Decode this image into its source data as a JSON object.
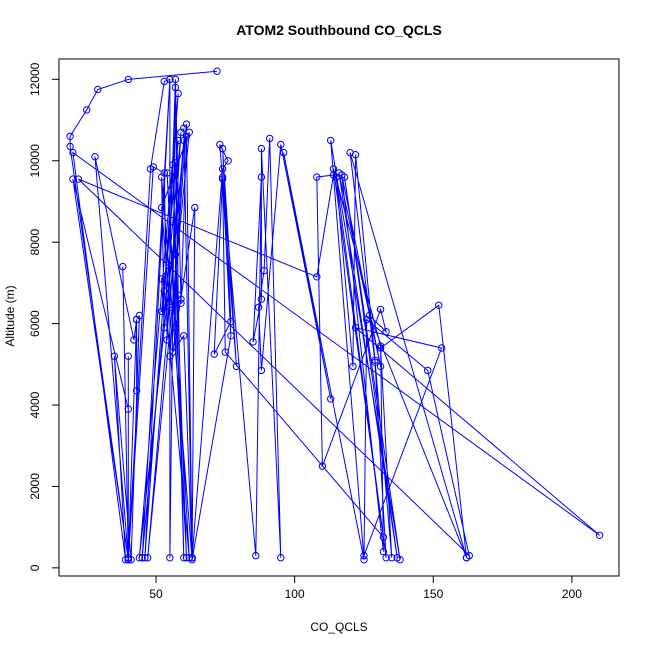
{
  "chart_data": {
    "type": "line",
    "title": "ATOM2 Southbound CO_QCLS",
    "xlabel": "CO_QCLS",
    "ylabel": "Altitude (m)",
    "xlim": [
      15,
      217
    ],
    "ylim": [
      -200,
      12500
    ],
    "xticks": [
      50,
      100,
      150,
      200
    ],
    "yticks": [
      0,
      2000,
      4000,
      6000,
      8000,
      10000,
      12000
    ],
    "grid": false,
    "series_color": "#0000ff",
    "series": [
      {
        "points": [
          [
            72,
            12200
          ],
          [
            40,
            12000
          ],
          [
            29,
            11750
          ],
          [
            25,
            11250
          ],
          [
            19,
            10600
          ],
          [
            19,
            10350
          ],
          [
            40,
            200
          ],
          [
            38,
            7400
          ],
          [
            40,
            250
          ],
          [
            40,
            5200
          ],
          [
            40,
            3900
          ],
          [
            20,
            9550
          ],
          [
            40,
            200
          ],
          [
            43,
            6100
          ],
          [
            42,
            5600
          ],
          [
            28,
            10100
          ],
          [
            40,
            250
          ],
          [
            48,
            9800
          ],
          [
            53,
            11950
          ],
          [
            55,
            12000
          ],
          [
            45,
            250
          ],
          [
            59,
            10700
          ],
          [
            55,
            6400
          ],
          [
            52,
            8850
          ],
          [
            62,
            10700
          ],
          [
            47,
            250
          ],
          [
            60,
            10500
          ],
          [
            55,
            5200
          ],
          [
            61,
            10900
          ],
          [
            44,
            250
          ],
          [
            58,
            11650
          ],
          [
            46,
            250
          ],
          [
            55,
            12000
          ],
          [
            55,
            250
          ],
          [
            57,
            11800
          ],
          [
            58,
            6700
          ],
          [
            57,
            9950
          ],
          [
            60,
            250
          ],
          [
            56,
            9900
          ],
          [
            61,
            250
          ],
          [
            54,
            9700
          ],
          [
            62,
            250
          ],
          [
            53,
            6800
          ],
          [
            58,
            10500
          ],
          [
            52,
            6300
          ],
          [
            59,
            6500
          ],
          [
            61,
            10600
          ],
          [
            63,
            250
          ],
          [
            60,
            10800
          ],
          [
            63,
            250
          ],
          [
            64,
            8850
          ],
          [
            56,
            5300
          ],
          [
            60,
            5700
          ],
          [
            63,
            250
          ],
          [
            74,
            9800
          ],
          [
            76,
            10000
          ],
          [
            73,
            10400
          ],
          [
            79,
            4950
          ],
          [
            74,
            10300
          ],
          [
            77,
            6050
          ],
          [
            71,
            5250
          ],
          [
            74,
            9600
          ],
          [
            86,
            300
          ],
          [
            88,
            9600
          ],
          [
            85,
            5550
          ],
          [
            88,
            6600
          ],
          [
            88,
            10300
          ],
          [
            95,
            250
          ],
          [
            91,
            10550
          ],
          [
            89,
            7300
          ],
          [
            87,
            6400
          ],
          [
            88,
            4850
          ],
          [
            95,
            10400
          ],
          [
            113,
            4150
          ],
          [
            96,
            10200
          ],
          [
            125,
            200
          ],
          [
            113,
            10500
          ],
          [
            138,
            200
          ],
          [
            118,
            9600
          ],
          [
            137,
            250
          ],
          [
            116,
            9700
          ],
          [
            131,
            4950
          ],
          [
            117,
            9650
          ],
          [
            132,
            400
          ],
          [
            131,
            5450
          ],
          [
            114,
            9800
          ],
          [
            133,
            250
          ],
          [
            129,
            5050
          ],
          [
            120,
            10200
          ],
          [
            162,
            250
          ],
          [
            127,
            6200
          ],
          [
            133,
            5800
          ],
          [
            131,
            6350
          ],
          [
            110,
            2500
          ],
          [
            108,
            9600
          ],
          [
            114,
            9650
          ],
          [
            108,
            7150
          ],
          [
            22,
            9550
          ],
          [
            163,
            300
          ],
          [
            148,
            4850
          ],
          [
            126,
            6100
          ],
          [
            125,
            300
          ],
          [
            153,
            5400
          ],
          [
            122,
            5900
          ],
          [
            210,
            800
          ],
          [
            20,
            10200
          ],
          [
            39,
            200
          ],
          [
            35,
            5200
          ],
          [
            41,
            200
          ],
          [
            44,
            6200
          ],
          [
            43,
            4350
          ],
          [
            43,
            6100
          ],
          [
            40,
            200
          ],
          [
            49,
            9850
          ],
          [
            53,
            9700
          ],
          [
            54,
            5600
          ],
          [
            57,
            12000
          ],
          [
            59,
            6600
          ],
          [
            57,
            5900
          ],
          [
            57,
            7700
          ],
          [
            52,
            7100
          ],
          [
            53,
            5900
          ],
          [
            52,
            9600
          ],
          [
            63,
            200
          ],
          [
            77,
            5700
          ],
          [
            74,
            9550
          ],
          [
            75,
            5300
          ],
          [
            132,
            750
          ],
          [
            115,
            9600
          ],
          [
            121,
            4950
          ],
          [
            122,
            10150
          ],
          [
            129,
            5100
          ],
          [
            135,
            250
          ],
          [
            131,
            5400
          ],
          [
            152,
            6450
          ],
          [
            162,
            250
          ]
        ]
      }
    ]
  }
}
